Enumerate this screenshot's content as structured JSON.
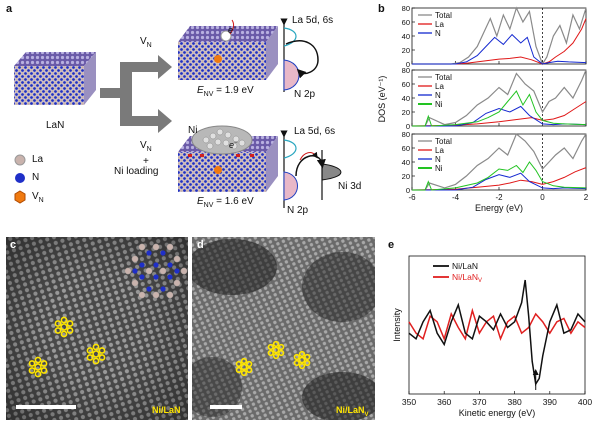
{
  "panel_labels": {
    "a": "a",
    "b": "b",
    "c": "c",
    "d": "d",
    "e": "e"
  },
  "panel_a": {
    "lan_label": "LaN",
    "vn_label_top": "V",
    "vn_sub_top": "N",
    "vn_label_bottom": "V",
    "vn_sub_bottom": "N",
    "plus": "+",
    "ni_loading": "Ni loading",
    "ni_label": "Ni",
    "electron_label": "e",
    "electron_sup": "−",
    "env_top": "E",
    "env_top_sub": "NV",
    "env_top_val": " = 1.9 eV",
    "env_bottom": "E",
    "env_bottom_sub": "NV",
    "env_bottom_val": " = 1.6 eV",
    "la_5d_6s_top": "La 5d, 6s",
    "la_5d_6s_bottom": "La 5d, 6s",
    "n2p_top": "N 2p",
    "n2p_bottom": "N 2p",
    "ni3d": "Ni 3d",
    "legend": [
      {
        "label": "La",
        "color": "#c9b3ad"
      },
      {
        "label": "N",
        "color": "#1f2fc8"
      },
      {
        "label": "V",
        "sub": "N",
        "color": "#f07a10"
      }
    ]
  },
  "chart_data": [
    {
      "type": "line",
      "panel": "b",
      "ylabel": "DOS (eV⁻¹)",
      "xlabel": "Energy (eV)",
      "xlim": [
        -6,
        2
      ],
      "xticks": [
        -6,
        -4,
        -2,
        0,
        2
      ],
      "subplots": [
        {
          "ylim": [
            0,
            80
          ],
          "yticks": [
            0,
            20,
            40,
            60,
            80
          ],
          "legend": [
            "Total",
            "La",
            "N"
          ],
          "series": [
            {
              "name": "Total",
              "color": "#8a8a8a",
              "x": [
                -6,
                -4.2,
                -3.8,
                -3.4,
                -3.0,
                -2.7,
                -2.4,
                -2.1,
                -1.8,
                -1.5,
                -1.2,
                -0.9,
                -0.6,
                -0.3,
                0,
                0.2,
                0.5,
                0.8,
                1.1,
                1.4,
                1.7,
                2.0
              ],
              "y": [
                0,
                0,
                2,
                10,
                25,
                45,
                65,
                40,
                70,
                50,
                80,
                60,
                75,
                25,
                0,
                10,
                40,
                55,
                30,
                70,
                50,
                80
              ]
            },
            {
              "name": "La",
              "color": "#e01818",
              "x": [
                -6,
                -4,
                -3.5,
                -3.0,
                -2.5,
                -2.0,
                -1.5,
                -1.0,
                -0.5,
                0,
                0.3,
                0.6,
                1.0,
                1.4,
                1.8,
                2.0
              ],
              "y": [
                0,
                0,
                1,
                3,
                5,
                7,
                8,
                10,
                6,
                0,
                3,
                10,
                18,
                30,
                50,
                65
              ]
            },
            {
              "name": "N",
              "color": "#1428d0",
              "x": [
                -6,
                -4,
                -3.5,
                -3.0,
                -2.6,
                -2.2,
                -1.8,
                -1.4,
                -1.0,
                -0.7,
                -0.4,
                0,
                0.3,
                0.7,
                1.2,
                2.0
              ],
              "y": [
                0,
                0,
                3,
                12,
                25,
                38,
                28,
                42,
                30,
                38,
                10,
                0,
                2,
                4,
                3,
                2
              ]
            }
          ]
        },
        {
          "ylim": [
            0,
            80
          ],
          "yticks": [
            0,
            20,
            40,
            60,
            80
          ],
          "legend": [
            "Total",
            "La",
            "N",
            "Ni"
          ],
          "series": [
            {
              "name": "Total",
              "color": "#8a8a8a",
              "x": [
                -6,
                -5.4,
                -5.2,
                -4.5,
                -4.0,
                -3.5,
                -3.0,
                -2.5,
                -2.0,
                -1.6,
                -1.2,
                -0.8,
                -0.4,
                0,
                0.3,
                0.6,
                1.0,
                1.4,
                1.8,
                2.0
              ],
              "y": [
                0,
                0,
                12,
                2,
                5,
                15,
                30,
                40,
                55,
                45,
                75,
                60,
                50,
                20,
                35,
                40,
                55,
                40,
                65,
                80
              ]
            },
            {
              "name": "La",
              "color": "#e01818",
              "x": [
                -6,
                -4,
                -3,
                -2,
                -1.5,
                -1,
                -0.5,
                0,
                0.5,
                1,
                1.5,
                2.0
              ],
              "y": [
                0,
                1,
                3,
                6,
                8,
                10,
                12,
                8,
                10,
                15,
                25,
                35
              ]
            },
            {
              "name": "N",
              "color": "#1428d0",
              "x": [
                -6,
                -4,
                -3.2,
                -2.6,
                -2.0,
                -1.5,
                -1.0,
                -0.6,
                0,
                0.5,
                1,
                2.0
              ],
              "y": [
                0,
                0,
                5,
                18,
                25,
                20,
                28,
                15,
                3,
                2,
                3,
                2
              ]
            },
            {
              "name": "Ni",
              "color": "#22c322",
              "x": [
                -6,
                -5.4,
                -5.25,
                -5.1,
                -4,
                -3,
                -2.5,
                -2.0,
                -1.6,
                -1.2,
                -0.9,
                -0.6,
                -0.3,
                0,
                0.5,
                1,
                2.0
              ],
              "y": [
                0,
                0,
                14,
                0,
                2,
                6,
                12,
                20,
                35,
                50,
                30,
                45,
                20,
                8,
                4,
                3,
                2
              ]
            }
          ]
        },
        {
          "ylim": [
            0,
            80
          ],
          "yticks": [
            0,
            20,
            40,
            60,
            80
          ],
          "legend": [
            "Total",
            "La",
            "N",
            "Ni"
          ],
          "series": [
            {
              "name": "Total",
              "color": "#8a8a8a",
              "x": [
                -6,
                -5.4,
                -5.2,
                -4.5,
                -4.0,
                -3.5,
                -3.0,
                -2.5,
                -2.0,
                -1.6,
                -1.2,
                -0.8,
                -0.4,
                0,
                0.3,
                0.6,
                1.0,
                1.4,
                1.8,
                2.0
              ],
              "y": [
                0,
                0,
                10,
                3,
                8,
                20,
                35,
                45,
                60,
                50,
                80,
                70,
                55,
                30,
                40,
                50,
                60,
                45,
                70,
                80
              ]
            },
            {
              "name": "La",
              "color": "#e01818",
              "x": [
                -6,
                -4,
                -3,
                -2,
                -1.5,
                -1,
                -0.5,
                0,
                0.5,
                1,
                1.5,
                2.0
              ],
              "y": [
                0,
                1,
                4,
                7,
                10,
                14,
                12,
                8,
                12,
                18,
                26,
                32
              ]
            },
            {
              "name": "N",
              "color": "#1428d0",
              "x": [
                -6,
                -4,
                -3.2,
                -2.6,
                -2.0,
                -1.5,
                -1.0,
                -0.6,
                0,
                0.5,
                1,
                2.0
              ],
              "y": [
                0,
                0,
                4,
                15,
                22,
                18,
                24,
                12,
                3,
                2,
                3,
                2
              ]
            },
            {
              "name": "Ni",
              "color": "#22c322",
              "x": [
                -6,
                -5.4,
                -5.25,
                -5.1,
                -4,
                -3,
                -2.5,
                -2.0,
                -1.6,
                -1.2,
                -0.9,
                -0.6,
                -0.3,
                0,
                0.5,
                1,
                2.0
              ],
              "y": [
                0,
                0,
                12,
                0,
                3,
                10,
                18,
                30,
                28,
                35,
                25,
                40,
                28,
                12,
                6,
                4,
                3
              ]
            }
          ]
        }
      ]
    },
    {
      "type": "line",
      "panel": "e",
      "ylabel": "Intensity",
      "xlabel": "Kinetic energy (eV)",
      "xlim": [
        350,
        400
      ],
      "xticks": [
        350,
        360,
        370,
        380,
        390,
        400
      ],
      "series": [
        {
          "name": "Ni/LaN",
          "color": "#111111",
          "x": [
            350,
            352,
            354,
            356,
            358,
            360,
            362,
            364,
            366,
            368,
            370,
            372,
            374,
            376,
            378,
            380,
            382,
            383,
            384,
            385,
            386,
            387,
            388,
            390,
            392,
            394,
            396,
            398,
            400
          ],
          "y": [
            0.45,
            0.4,
            0.55,
            0.65,
            0.45,
            0.35,
            0.55,
            0.7,
            0.45,
            0.4,
            0.6,
            0.55,
            0.48,
            0.62,
            0.5,
            0.55,
            0.72,
            0.92,
            0.6,
            0.2,
            0.0,
            0.05,
            0.25,
            0.55,
            0.7,
            0.45,
            0.48,
            0.62,
            0.55
          ]
        },
        {
          "name": "Ni/LaN",
          "sub": "V",
          "color": "#e02020",
          "x": [
            350,
            352,
            354,
            356,
            358,
            360,
            362,
            364,
            366,
            368,
            370,
            372,
            374,
            376,
            378,
            380,
            382,
            384,
            386,
            388,
            390,
            392,
            394,
            396,
            398,
            400
          ],
          "y": [
            0.55,
            0.45,
            0.4,
            0.6,
            0.55,
            0.4,
            0.62,
            0.5,
            0.4,
            0.65,
            0.45,
            0.55,
            0.6,
            0.4,
            0.55,
            0.6,
            0.45,
            0.5,
            0.62,
            0.55,
            0.45,
            0.55,
            0.58,
            0.45,
            0.55,
            0.5
          ]
        }
      ],
      "annotation": "arrow at ~386 eV"
    }
  ],
  "panel_c": {
    "label": "Ni/LaN"
  },
  "panel_d": {
    "label": "Ni/LaN",
    "label_sub": "V"
  }
}
